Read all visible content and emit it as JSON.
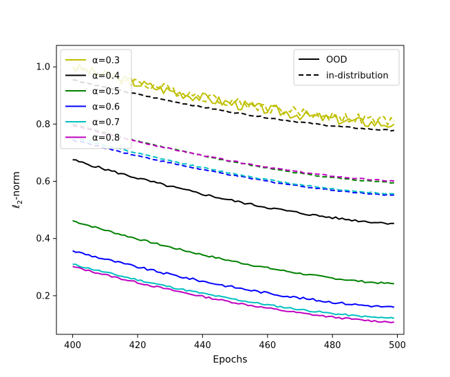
{
  "chart_data": {
    "type": "line",
    "title": "",
    "xlabel": "Epochs",
    "ylabel_prefix": "ℓ",
    "ylabel_sub": "2",
    "ylabel_suffix": "-norm",
    "xlim": [
      395,
      502
    ],
    "ylim": [
      0.065,
      1.075
    ],
    "xticks": [
      400,
      420,
      440,
      460,
      480,
      500
    ],
    "xtick_labels": [
      "400",
      "420",
      "440",
      "460",
      "480",
      "500"
    ],
    "yticks": [
      0.2,
      0.4,
      0.6,
      0.8,
      1.0
    ],
    "ytick_labels": [
      "0.2",
      "0.4",
      "0.6",
      "0.8",
      "1.0"
    ],
    "legend_alpha": {
      "placement": "top-left",
      "entries": [
        {
          "label": "α=0.3",
          "color": "#bfbf00"
        },
        {
          "label": "α=0.4",
          "color": "#000000"
        },
        {
          "label": "α=0.5",
          "color": "#008000"
        },
        {
          "label": "α=0.6",
          "color": "#0000ff"
        },
        {
          "label": "α=0.7",
          "color": "#00bfbf"
        },
        {
          "label": "α=0.8",
          "color": "#bf00bf"
        }
      ]
    },
    "legend_style": {
      "placement": "top-right",
      "entries": [
        {
          "label": "OOD",
          "dash": "solid"
        },
        {
          "label": "in-distribution",
          "dash": "dashed"
        }
      ]
    },
    "series": [
      {
        "name": "α=0.3 OOD",
        "alpha": "0.3",
        "kind": "OOD",
        "color": "#bfbf00",
        "start": 1.0,
        "end": 0.8,
        "noise": 0.018,
        "seed": 3
      },
      {
        "name": "α=0.3 in-distribution",
        "alpha": "0.3",
        "kind": "in-distribution",
        "color": "#bfbf00",
        "start": 1.0,
        "end": 0.81,
        "noise": 0.018,
        "seed": 4
      },
      {
        "name": "α=0.4 OOD",
        "alpha": "0.4",
        "kind": "OOD",
        "color": "#000000",
        "start": 0.675,
        "end": 0.453,
        "noise": 0.004,
        "seed": 5
      },
      {
        "name": "α=0.4 in-distribution",
        "alpha": "0.4",
        "kind": "in-distribution",
        "color": "#000000",
        "start": 0.955,
        "end": 0.778,
        "noise": 0.002,
        "seed": 6
      },
      {
        "name": "α=0.5 OOD",
        "alpha": "0.5",
        "kind": "OOD",
        "color": "#008000",
        "start": 0.462,
        "end": 0.242,
        "noise": 0.003,
        "seed": 7
      },
      {
        "name": "α=0.5 in-distribution",
        "alpha": "0.5",
        "kind": "in-distribution",
        "color": "#008000",
        "start": 0.8,
        "end": 0.595,
        "noise": 0.002,
        "seed": 8
      },
      {
        "name": "α=0.6 OOD",
        "alpha": "0.6",
        "kind": "OOD",
        "color": "#0000ff",
        "start": 0.357,
        "end": 0.16,
        "noise": 0.004,
        "seed": 9
      },
      {
        "name": "α=0.6 in-distribution",
        "alpha": "0.6",
        "kind": "in-distribution",
        "color": "#0000ff",
        "start": 0.745,
        "end": 0.552,
        "noise": 0.002,
        "seed": 10
      },
      {
        "name": "α=0.7 OOD",
        "alpha": "0.7",
        "kind": "OOD",
        "color": "#00bfbf",
        "start": 0.31,
        "end": 0.121,
        "noise": 0.003,
        "seed": 11
      },
      {
        "name": "α=0.7 in-distribution",
        "alpha": "0.7",
        "kind": "in-distribution",
        "color": "#00bfbf",
        "start": 0.755,
        "end": 0.556,
        "noise": 0.002,
        "seed": 12
      },
      {
        "name": "α=0.8 OOD",
        "alpha": "0.8",
        "kind": "OOD",
        "color": "#bf00bf",
        "start": 0.302,
        "end": 0.108,
        "noise": 0.003,
        "seed": 13
      },
      {
        "name": "α=0.8 in-distribution",
        "alpha": "0.8",
        "kind": "in-distribution",
        "color": "#bf00bf",
        "start": 0.795,
        "end": 0.601,
        "noise": 0.002,
        "seed": 14
      }
    ]
  }
}
